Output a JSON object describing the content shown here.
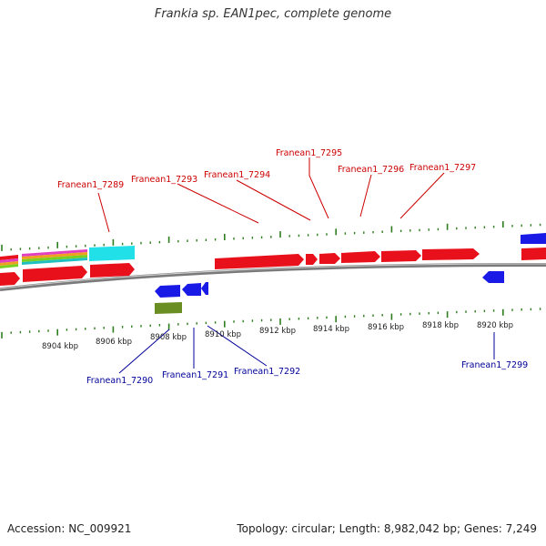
{
  "title": "Frankia sp. EAN1pec, complete genome",
  "footer": {
    "accession": "Accession: NC_009921",
    "summary": "Topology: circular; Length: 8,982,042 bp; Genes: 7,249"
  },
  "colors": {
    "forward_gene": "#e8101a",
    "reverse_gene": "#1a1ae6",
    "backbone": "#777777",
    "ticks": "#2e7d1e",
    "label_red": "#cc0000",
    "label_blue": "#000099",
    "olive_feature": "#6b8e23",
    "cyan_feature": "#21e0e8"
  },
  "upper_labels": [
    "Franean1_7289",
    "Franean1_7293",
    "Franean1_7294",
    "Franean1_7295",
    "Franean1_7296",
    "Franean1_7297"
  ],
  "lower_labels": [
    "Franean1_7290",
    "Franean1_7291",
    "Franean1_7292",
    "Franean1_7299"
  ],
  "kbp_ticks": [
    "8904 kbp",
    "8906 kbp",
    "8908 kbp",
    "8910 kbp",
    "8912 kbp",
    "8914 kbp",
    "8916 kbp",
    "8918 kbp",
    "8920 kbp"
  ]
}
